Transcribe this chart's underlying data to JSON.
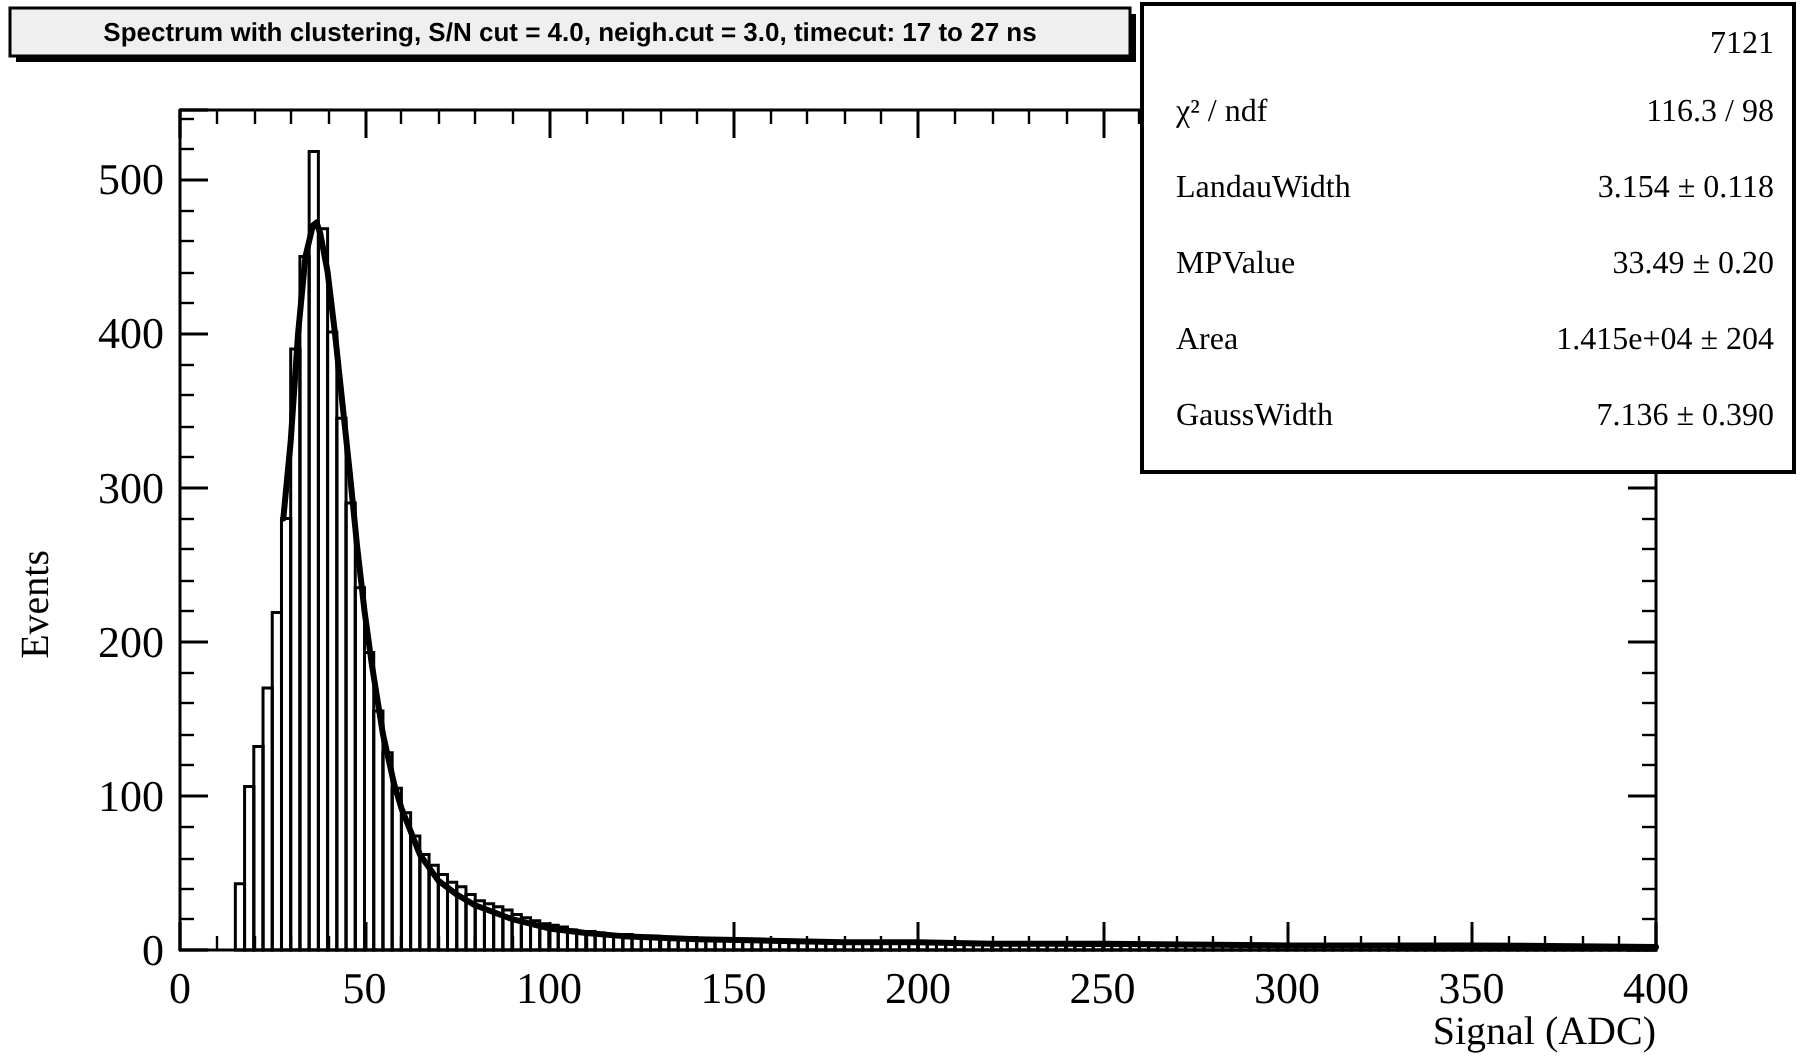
{
  "chart_data": {
    "type": "histogram",
    "title": "Spectrum with clustering, S/N cut = 4.0, neigh.cut = 3.0, timecut: 17 to 27 ns",
    "xlabel": "Signal (ADC)",
    "ylabel": "Events",
    "xlim": [
      0,
      400
    ],
    "xticks": [
      0,
      50,
      100,
      150,
      200,
      250,
      300,
      350,
      400
    ],
    "ylim": [
      0,
      545
    ],
    "yticks": [
      0,
      100,
      200,
      300,
      400,
      500
    ],
    "grid": false,
    "annotations": [
      "7121",
      "χ² / ndf",
      "116.3 / 98",
      "LandauWidth",
      "3.154 ± 0.118",
      "MPValue",
      "33.49 ± 0.20",
      "Area",
      "1.415e+04 ± 204",
      "GaussWidth",
      "7.136 ± 0.390"
    ],
    "series": [
      {
        "color": "#000000",
        "bins": [
          15,
          17.5,
          20,
          22.5,
          25,
          27.5,
          30,
          32.5,
          35,
          37.5,
          40,
          42.5,
          45,
          47.5,
          50,
          52.5,
          55,
          57.5,
          60,
          62.5,
          65,
          67.5,
          70,
          72.5,
          75,
          77.5,
          80,
          82.5,
          85,
          87.5,
          90,
          92.5,
          95,
          97.5,
          100,
          102.5,
          105,
          107.5,
          110,
          112.5,
          115,
          117.5,
          120,
          122.5,
          125,
          127.5,
          130,
          132.5,
          135,
          137.5,
          140,
          142.5,
          145,
          147.5,
          150,
          152.5,
          155,
          157.5,
          160,
          162.5,
          165,
          167.5,
          170,
          172.5,
          175,
          177.5,
          180,
          182.5,
          185,
          187.5,
          190,
          192.5,
          195,
          197.5,
          200,
          202.5,
          205,
          207.5,
          210,
          212.5,
          215,
          217.5,
          220,
          222.5,
          225,
          227.5,
          230,
          232.5,
          235,
          237.5,
          240,
          242.5,
          245,
          247.5,
          250,
          252.5,
          255,
          257.5,
          260,
          262.5,
          265,
          267.5,
          270,
          272.5,
          275,
          277.5,
          280,
          282.5,
          285,
          287.5,
          290,
          292.5,
          295,
          297.5,
          300,
          302.5,
          305,
          307.5,
          310,
          312.5,
          315,
          317.5,
          320,
          322.5,
          325,
          327.5,
          330,
          332.5,
          335,
          337.5,
          340,
          342.5,
          345,
          347.5,
          350,
          352.5,
          355,
          357.5,
          360,
          362.5,
          365,
          367.5,
          370,
          372.5,
          375,
          377.5,
          380,
          382.5,
          385,
          387.5,
          390,
          392.5,
          395,
          397.5,
          400
        ],
        "values": [
          43,
          106,
          132,
          170,
          219,
          280,
          390,
          450,
          518,
          468,
          401,
          345,
          290,
          235,
          193,
          155,
          128,
          105,
          89,
          74,
          62,
          55,
          49,
          44,
          41,
          36,
          32,
          30,
          28,
          26,
          23,
          21,
          19,
          17,
          16,
          15,
          13,
          12,
          12,
          11,
          10,
          10,
          10,
          9,
          9,
          9,
          8,
          8,
          8,
          8,
          7,
          7,
          7,
          7,
          7,
          7,
          6,
          6,
          6,
          6,
          6,
          6,
          6,
          6,
          5,
          5,
          5,
          5,
          5,
          5,
          5,
          5,
          5,
          5,
          5,
          5,
          5,
          4,
          4,
          4,
          4,
          4,
          4,
          4,
          4,
          4,
          4,
          4,
          4,
          4,
          4,
          3,
          3,
          3,
          3,
          3,
          3,
          3,
          3,
          3,
          3,
          3,
          3,
          3,
          3,
          3,
          3,
          3,
          3,
          3,
          3,
          3,
          3,
          3,
          3,
          3,
          3,
          3,
          3,
          3,
          3,
          3,
          3,
          3,
          3,
          3,
          2,
          2,
          2,
          2,
          2,
          2,
          2,
          2,
          2,
          2,
          2,
          2,
          2,
          2,
          2,
          2,
          2,
          2,
          2,
          2,
          2,
          2,
          2,
          2,
          2,
          2,
          2,
          2
        ]
      },
      {
        "type": "line",
        "color": "#000000",
        "x": [
          28,
          30,
          32,
          34,
          36,
          37,
          38,
          40,
          42,
          44,
          46,
          48,
          50,
          52,
          55,
          58,
          60,
          65,
          70,
          75,
          80,
          90,
          100,
          110,
          120,
          140,
          160,
          180,
          200,
          220,
          250,
          300,
          350,
          400
        ],
        "values": [
          280,
          330,
          400,
          450,
          470,
          472,
          465,
          440,
          400,
          355,
          310,
          262,
          220,
          185,
          140,
          108,
          92,
          62,
          45,
          36,
          29,
          20,
          14,
          11,
          9,
          7,
          6,
          5,
          5,
          4,
          4,
          3,
          3,
          2
        ]
      }
    ]
  }
}
